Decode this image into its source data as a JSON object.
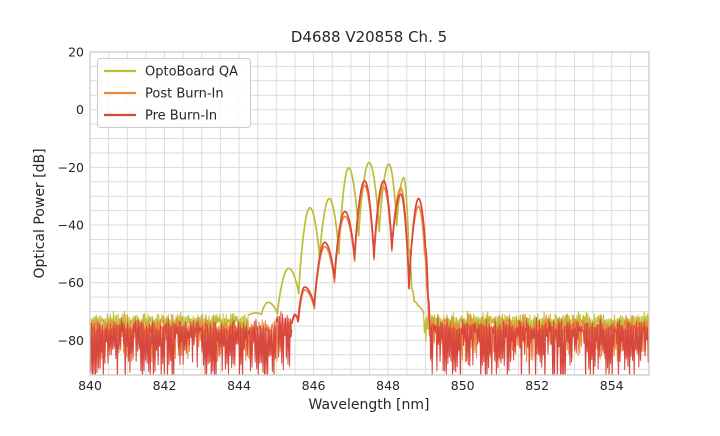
{
  "title": "D4688 V20858 Ch. 5",
  "colors": {
    "background": "#ffffff",
    "grid": "#dcdcdc",
    "spine": "#c9c9c9",
    "text": "#262626",
    "legend_border": "#cccccc",
    "legend_bg_opacity": 0.85,
    "olive": "#bcbe33",
    "orange": "#f0883b",
    "red": "#d8473d"
  },
  "chart_data": {
    "type": "line",
    "title": "D4688 V20858 Ch. 5",
    "xlabel": "Wavelength [nm]",
    "ylabel": "Optical Power [dB]",
    "xlim": [
      840,
      855
    ],
    "ylim": [
      -92,
      20
    ],
    "grid": true,
    "grid_step_x": 0.5,
    "grid_step_y": 5,
    "legend_position": "upper left",
    "xticks": {
      "values": [
        840,
        842,
        844,
        846,
        848,
        850,
        852,
        854
      ],
      "labels": [
        "840",
        "842",
        "844",
        "846",
        "848",
        "850",
        "852",
        "854"
      ]
    },
    "yticks": {
      "values": [
        20,
        0,
        -20,
        -40,
        -60,
        -80
      ],
      "labels": [
        "20",
        "0",
        "−20",
        "−40",
        "−60",
        "−80"
      ]
    },
    "series": [
      {
        "name": "OptoBoard QA",
        "color": "#bcbe33",
        "seed": 11,
        "anchors": [
          [
            844.25,
            -71.2
          ],
          [
            844.45,
            -70.5
          ],
          [
            844.6,
            -71.0
          ],
          [
            844.78,
            -66.8
          ],
          [
            845.03,
            -70.8
          ],
          [
            845.33,
            -55.0
          ],
          [
            845.6,
            -63.8
          ],
          [
            845.9,
            -34.0
          ],
          [
            846.16,
            -51.5
          ],
          [
            846.42,
            -30.8
          ],
          [
            846.68,
            -50.0
          ],
          [
            846.94,
            -20.2
          ],
          [
            847.21,
            -43.7
          ],
          [
            847.49,
            -18.3
          ],
          [
            847.76,
            -42.3
          ],
          [
            848.02,
            -18.9
          ],
          [
            848.23,
            -40.2
          ],
          [
            848.42,
            -23.6
          ],
          [
            848.55,
            -48.0
          ],
          [
            848.63,
            -62.0
          ],
          [
            848.7,
            -66.5
          ],
          [
            848.8,
            -68.0
          ],
          [
            848.88,
            -69.0
          ],
          [
            848.95,
            -70.5
          ]
        ],
        "noise": {
          "segments": [
            [
              840,
              844.25
            ],
            [
              848.95,
              855
            ]
          ],
          "top": -70.8,
          "comb": 2.2,
          "spread": 8.0,
          "tip": 1.2
        }
      },
      {
        "name": "Post Burn-In",
        "color": "#f0883b",
        "seed": 23,
        "anchors": [
          [
            845.42,
            -74.0
          ],
          [
            845.52,
            -71.5
          ],
          [
            845.6,
            -73.0
          ],
          [
            845.76,
            -62.5
          ],
          [
            846.02,
            -69.0
          ],
          [
            846.3,
            -47.5
          ],
          [
            846.56,
            -60.0
          ],
          [
            846.84,
            -37.0
          ],
          [
            847.1,
            -52.5
          ],
          [
            847.37,
            -26.3
          ],
          [
            847.62,
            -52.0
          ],
          [
            847.88,
            -26.9
          ],
          [
            848.1,
            -49.0
          ],
          [
            848.34,
            -27.2
          ],
          [
            848.56,
            -60.0
          ],
          [
            848.82,
            -33.5
          ],
          [
            848.98,
            -50.0
          ],
          [
            849.04,
            -62.0
          ],
          [
            849.09,
            -73.0
          ]
        ],
        "noise": {
          "segments": [
            [
              840,
              845.42
            ],
            [
              849.09,
              855
            ]
          ],
          "top": -72.5,
          "comb": 3.0,
          "spread": 12.0,
          "tip": 1.5
        }
      },
      {
        "name": "Pre Burn-In",
        "color": "#d8473d",
        "seed": 37,
        "anchors": [
          [
            845.42,
            -74.0
          ],
          [
            845.5,
            -71.0
          ],
          [
            845.58,
            -73.5
          ],
          [
            845.76,
            -61.5
          ],
          [
            846.02,
            -68.0
          ],
          [
            846.3,
            -46.0
          ],
          [
            846.56,
            -58.5
          ],
          [
            846.84,
            -35.3
          ],
          [
            847.1,
            -51.5
          ],
          [
            847.37,
            -24.7
          ],
          [
            847.62,
            -51.0
          ],
          [
            847.88,
            -24.7
          ],
          [
            848.1,
            -48.0
          ],
          [
            848.34,
            -29.3
          ],
          [
            848.56,
            -62.0
          ],
          [
            848.82,
            -30.8
          ],
          [
            849.0,
            -48.0
          ],
          [
            849.07,
            -65.0
          ],
          [
            849.12,
            -76.0
          ]
        ],
        "noise": {
          "segments": [
            [
              840,
              845.42
            ],
            [
              849.12,
              855
            ]
          ],
          "top": -73.5,
          "comb": 3.0,
          "spread": 19.0,
          "tip": 1.5,
          "boost": {
            "range": [
              844.98,
              845.4
            ],
            "top": -70.0
          }
        }
      }
    ]
  }
}
